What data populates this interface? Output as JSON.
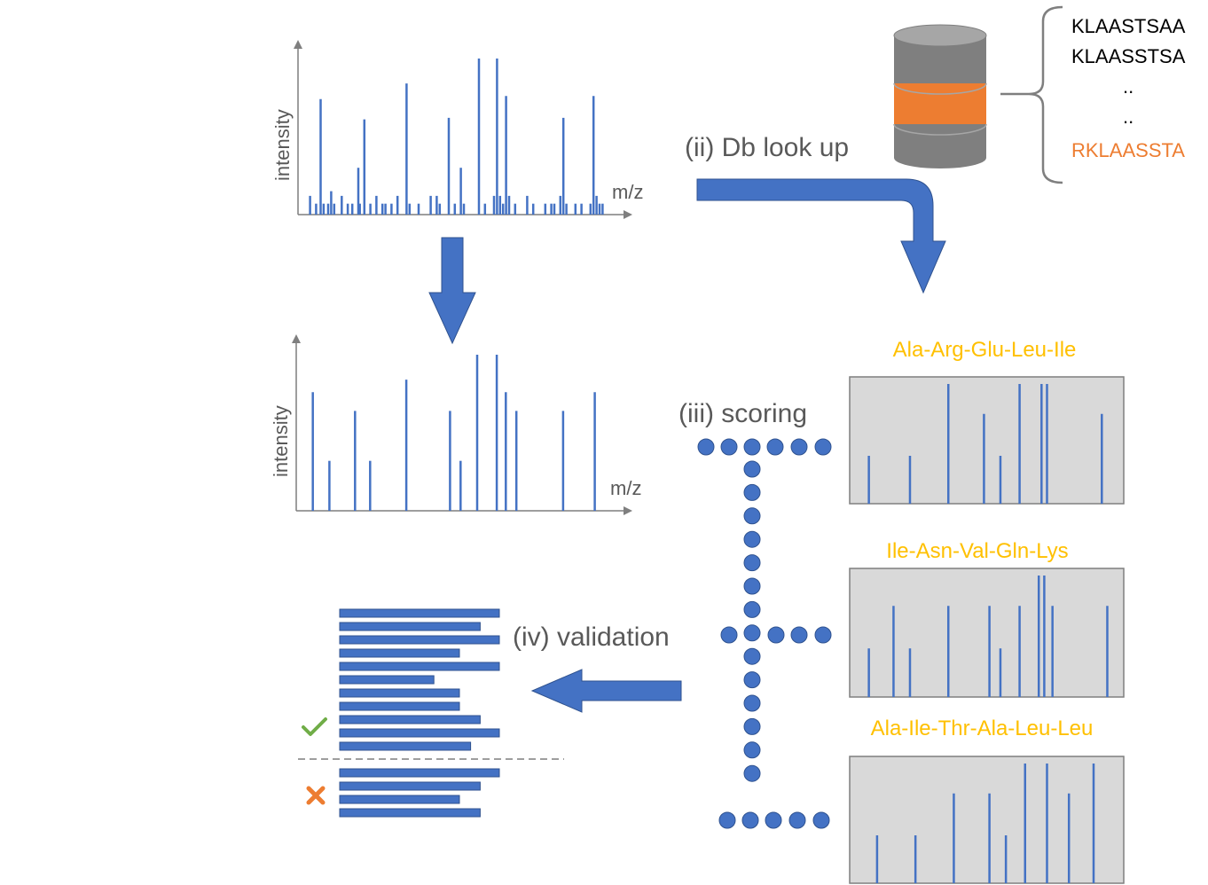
{
  "colors": {
    "blue": "#4472c4",
    "gray_text": "#595959",
    "axis": "#7f7f7f",
    "orange": "#ed7d31",
    "gold": "#ffc000",
    "panel_fill": "#d9d9d9",
    "green": "#70ad47",
    "cylinder_gray": "#7f7f7f",
    "cylinder_top": "#a6a6a6"
  },
  "raw_spectrum": {
    "ylabel": "intensity",
    "xlabel": "m/z",
    "peaks": [
      [
        0.04,
        0.12
      ],
      [
        0.06,
        0.07
      ],
      [
        0.075,
        0.74
      ],
      [
        0.085,
        0.07
      ],
      [
        0.1,
        0.07
      ],
      [
        0.11,
        0.15
      ],
      [
        0.12,
        0.07
      ],
      [
        0.145,
        0.12
      ],
      [
        0.165,
        0.07
      ],
      [
        0.18,
        0.07
      ],
      [
        0.2,
        0.3
      ],
      [
        0.205,
        0.07
      ],
      [
        0.22,
        0.61
      ],
      [
        0.24,
        0.07
      ],
      [
        0.26,
        0.12
      ],
      [
        0.28,
        0.07
      ],
      [
        0.29,
        0.07
      ],
      [
        0.31,
        0.07
      ],
      [
        0.33,
        0.12
      ],
      [
        0.36,
        0.84
      ],
      [
        0.37,
        0.07
      ],
      [
        0.4,
        0.07
      ],
      [
        0.44,
        0.12
      ],
      [
        0.46,
        0.12
      ],
      [
        0.47,
        0.07
      ],
      [
        0.5,
        0.62
      ],
      [
        0.52,
        0.07
      ],
      [
        0.54,
        0.3
      ],
      [
        0.55,
        0.07
      ],
      [
        0.6,
        1.0
      ],
      [
        0.62,
        0.07
      ],
      [
        0.65,
        0.12
      ],
      [
        0.66,
        1.0
      ],
      [
        0.67,
        0.12
      ],
      [
        0.68,
        0.07
      ],
      [
        0.69,
        0.76
      ],
      [
        0.7,
        0.12
      ],
      [
        0.72,
        0.07
      ],
      [
        0.76,
        0.12
      ],
      [
        0.78,
        0.07
      ],
      [
        0.82,
        0.07
      ],
      [
        0.84,
        0.07
      ],
      [
        0.85,
        0.07
      ],
      [
        0.87,
        0.12
      ],
      [
        0.88,
        0.62
      ],
      [
        0.89,
        0.07
      ],
      [
        0.92,
        0.07
      ],
      [
        0.94,
        0.07
      ],
      [
        0.97,
        0.07
      ],
      [
        0.98,
        0.76
      ],
      [
        0.99,
        0.12
      ],
      [
        1.0,
        0.07
      ],
      [
        1.01,
        0.07
      ]
    ]
  },
  "processed_spectrum": {
    "ylabel": "intensity",
    "xlabel": "m/z",
    "peaks": [
      [
        0.055,
        0.76
      ],
      [
        0.11,
        0.32
      ],
      [
        0.195,
        0.64
      ],
      [
        0.245,
        0.32
      ],
      [
        0.365,
        0.84
      ],
      [
        0.51,
        0.64
      ],
      [
        0.545,
        0.32
      ],
      [
        0.6,
        1.0
      ],
      [
        0.665,
        1.0
      ],
      [
        0.695,
        0.76
      ],
      [
        0.73,
        0.64
      ],
      [
        0.885,
        0.64
      ],
      [
        0.99,
        0.76
      ]
    ]
  },
  "labels": {
    "db_lookup": "(ii) Db look up",
    "scoring": "(iii) scoring",
    "validation": "(iv) validation"
  },
  "database": {
    "sequences": [
      "KLAASTSAA",
      "KLAASSTSA",
      "..",
      ".."
    ],
    "highlight": "RKLAASSTA"
  },
  "candidates": [
    {
      "name": "Ala-Arg-Glu-Leu-Ile",
      "peaks": [
        [
          0.07,
          0.4
        ],
        [
          0.22,
          0.4
        ],
        [
          0.36,
          1.0
        ],
        [
          0.49,
          0.75
        ],
        [
          0.55,
          0.4
        ],
        [
          0.62,
          1.0
        ],
        [
          0.7,
          1.0
        ],
        [
          0.72,
          1.0
        ],
        [
          0.92,
          0.75
        ]
      ]
    },
    {
      "name": "Ile-Asn-Val-Gln-Lys",
      "peaks": [
        [
          0.07,
          0.4
        ],
        [
          0.16,
          0.75
        ],
        [
          0.22,
          0.4
        ],
        [
          0.36,
          0.75
        ],
        [
          0.51,
          0.75
        ],
        [
          0.55,
          0.4
        ],
        [
          0.62,
          0.75
        ],
        [
          0.69,
          1.0
        ],
        [
          0.71,
          1.0
        ],
        [
          0.74,
          0.75
        ],
        [
          0.94,
          0.75
        ]
      ]
    },
    {
      "name": "Ala-Ile-Thr-Ala-Leu-Leu",
      "peaks": [
        [
          0.1,
          0.4
        ],
        [
          0.24,
          0.4
        ],
        [
          0.38,
          0.75
        ],
        [
          0.51,
          0.75
        ],
        [
          0.57,
          0.4
        ],
        [
          0.64,
          1.0
        ],
        [
          0.72,
          1.0
        ],
        [
          0.8,
          0.75
        ],
        [
          0.89,
          1.0
        ]
      ]
    }
  ],
  "validation_list": {
    "accepted_fractions": [
      1.0,
      0.88,
      1.0,
      0.75,
      1.0,
      0.59,
      0.75,
      0.75,
      0.88,
      1.0,
      0.82
    ],
    "rejected_fractions": [
      1.0,
      0.88,
      0.75,
      0.88
    ]
  },
  "icons": [
    "check-icon",
    "cross-icon",
    "database-icon"
  ]
}
